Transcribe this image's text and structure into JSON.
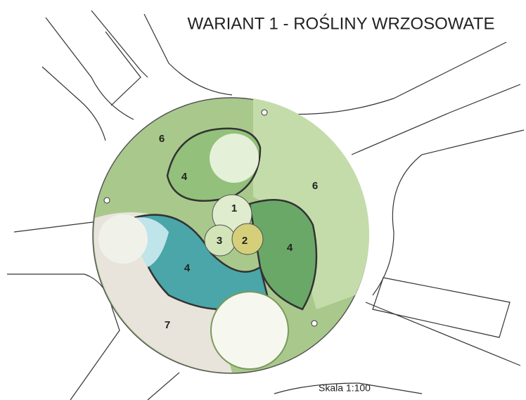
{
  "title": "WARIANT 1 - ROŚLINY WRZOSOWATE",
  "scale": "Skala 1:100",
  "labels": [
    "6",
    "4",
    "1",
    "3",
    "2",
    "4",
    "4",
    "6",
    "7"
  ]
}
